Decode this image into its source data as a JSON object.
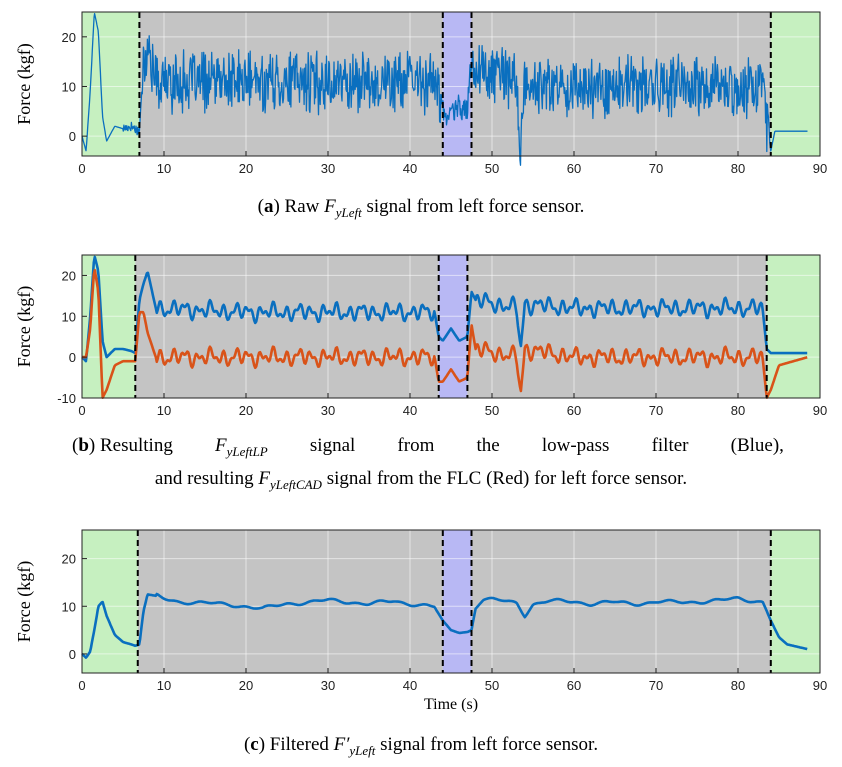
{
  "chart_data": [
    {
      "type": "line",
      "panel": "a",
      "caption": {
        "label": "a",
        "before": "Raw ",
        "sym": "F",
        "sub": "yLeft",
        "after": " signal from left force sensor."
      },
      "ylabel": "Force (kgf)",
      "xlabel": "",
      "xlim": [
        0,
        90
      ],
      "ylim": [
        -4,
        25
      ],
      "xticks": [
        0,
        10,
        20,
        30,
        40,
        50,
        60,
        70,
        80,
        90
      ],
      "yticks": [
        0,
        10,
        20
      ],
      "grid": true,
      "regions": [
        {
          "from": 0,
          "to": 7,
          "color": "#c6f0c0"
        },
        {
          "from": 7,
          "to": 44,
          "color": "#c4c4c4"
        },
        {
          "from": 44,
          "to": 47.5,
          "color": "#b8b8f4"
        },
        {
          "from": 47.5,
          "to": 84,
          "color": "#c4c4c4"
        },
        {
          "from": 84,
          "to": 90,
          "color": "#c6f0c0"
        }
      ],
      "boundaries": [
        7,
        44,
        47.5,
        84
      ],
      "series": [
        {
          "color": "#0a6fbf",
          "kind": "raw",
          "x": [
            0,
            0.5,
            1,
            1.5,
            2,
            2.5,
            3,
            4,
            5,
            6,
            7,
            7.5,
            8,
            9,
            43,
            44,
            45,
            46,
            47,
            47.5,
            48,
            53,
            53.5,
            54,
            83,
            84,
            84.5,
            85,
            88.5
          ],
          "y": [
            0,
            -3,
            9,
            25,
            21,
            4,
            -1,
            2,
            1.5,
            2,
            1,
            15,
            18,
            11,
            11,
            5,
            4,
            6,
            5,
            16,
            14,
            11,
            -3,
            10,
            10,
            -3,
            1,
            1,
            1
          ]
        }
      ]
    },
    {
      "type": "line",
      "panel": "b",
      "caption": {
        "label": "b",
        "line1": [
          "Resulting",
          "F|yLeftLP",
          "signal",
          "from",
          "the",
          "low-pass",
          "filter",
          "(Blue),"
        ],
        "line2_before": "and resulting ",
        "sym": "F",
        "sub": "yLeftCAD",
        "line2_after": " signal from the FLC (Red) for left force sensor."
      },
      "ylabel": "Force (kgf)",
      "xlabel": "",
      "xlim": [
        0,
        90
      ],
      "ylim": [
        -10,
        25
      ],
      "xticks": [
        0,
        10,
        20,
        30,
        40,
        50,
        60,
        70,
        80,
        90
      ],
      "yticks": [
        -10,
        0,
        10,
        20
      ],
      "grid": true,
      "regions": [
        {
          "from": 0,
          "to": 6.5,
          "color": "#c6f0c0"
        },
        {
          "from": 6.5,
          "to": 43.5,
          "color": "#c4c4c4"
        },
        {
          "from": 43.5,
          "to": 47,
          "color": "#b8b8f4"
        },
        {
          "from": 47,
          "to": 83.5,
          "color": "#c4c4c4"
        },
        {
          "from": 83.5,
          "to": 90,
          "color": "#c6f0c0"
        }
      ],
      "boundaries": [
        6.5,
        43.5,
        47,
        83.5
      ],
      "series": [
        {
          "name": "Blue",
          "color": "#0a6fbf",
          "kind": "smooth",
          "x": [
            0,
            0.5,
            1,
            1.5,
            2,
            2.5,
            3,
            4,
            5,
            6,
            6.5,
            7,
            7.5,
            8,
            9,
            20,
            30,
            40,
            43,
            43.5,
            44,
            45,
            46,
            47,
            47.5,
            48,
            53,
            53.5,
            54,
            60,
            70,
            80,
            83,
            83.5,
            84,
            85,
            88.5
          ],
          "y": [
            0,
            -1,
            10,
            25,
            21,
            4,
            0,
            2,
            2,
            1.5,
            1,
            14,
            18,
            21,
            12,
            11,
            11,
            11,
            11,
            5,
            4,
            7,
            4,
            5,
            16,
            14,
            12,
            2,
            13,
            12,
            12,
            12,
            12,
            2,
            1,
            1,
            1
          ]
        },
        {
          "name": "Red",
          "color": "#d95319",
          "kind": "smooth",
          "x": [
            0,
            0.5,
            1,
            1.5,
            2,
            2.5,
            3,
            4,
            5,
            6,
            6.5,
            7,
            7.5,
            8,
            9,
            20,
            30,
            40,
            43,
            43.5,
            44,
            45,
            46,
            47,
            47.5,
            48,
            53,
            53.5,
            54,
            60,
            70,
            80,
            83,
            83.5,
            84,
            85,
            88.5
          ],
          "y": [
            0,
            0,
            7,
            22,
            16,
            -10,
            -8,
            -2,
            -1,
            -1,
            -1,
            11,
            11,
            6,
            0,
            0,
            0,
            0,
            0,
            -6,
            -6,
            -3,
            -6,
            -5,
            8,
            2,
            0,
            -9,
            2,
            0,
            0,
            0,
            0,
            -10,
            -8,
            -2,
            0
          ]
        }
      ]
    },
    {
      "type": "line",
      "panel": "c",
      "caption": {
        "label": "c",
        "before": "Filtered ",
        "sym": "F′",
        "sub": "yLeft",
        "after": " signal from left force sensor."
      },
      "ylabel": "Force (kgf)",
      "xlabel": "Time (s)",
      "xlim": [
        0,
        90
      ],
      "ylim": [
        -4,
        26
      ],
      "xticks": [
        0,
        10,
        20,
        30,
        40,
        50,
        60,
        70,
        80,
        90
      ],
      "yticks": [
        0,
        10,
        20
      ],
      "grid": true,
      "regions": [
        {
          "from": 0,
          "to": 6.8,
          "color": "#c6f0c0"
        },
        {
          "from": 6.8,
          "to": 44,
          "color": "#c4c4c4"
        },
        {
          "from": 44,
          "to": 47.5,
          "color": "#b8b8f4"
        },
        {
          "from": 47.5,
          "to": 84,
          "color": "#c4c4c4"
        },
        {
          "from": 84,
          "to": 90,
          "color": "#c6f0c0"
        }
      ],
      "boundaries": [
        6.8,
        44,
        47.5,
        84
      ],
      "series": [
        {
          "color": "#0a6fbf",
          "kind": "smooth",
          "x": [
            0,
            0.5,
            1,
            1.5,
            2,
            2.5,
            3,
            4,
            5,
            6,
            6.5,
            7,
            7.5,
            8,
            9,
            10,
            12,
            15,
            18,
            20,
            22,
            25,
            28,
            30,
            33,
            35,
            38,
            40,
            42,
            43,
            44,
            45,
            46,
            47,
            47.5,
            48,
            49,
            50,
            52,
            53,
            54,
            55,
            57,
            60,
            62,
            65,
            68,
            70,
            72,
            75,
            78,
            80,
            82,
            83,
            84,
            85,
            86,
            88.5
          ],
          "y": [
            0,
            -0.8,
            0.5,
            5,
            10,
            11,
            8,
            4,
            2.5,
            2,
            1.7,
            2,
            9,
            12.5,
            12.2,
            11.6,
            11,
            10.6,
            10.4,
            10,
            9.4,
            10.6,
            10.9,
            11.2,
            10.9,
            10.5,
            11,
            10.6,
            10.2,
            9.8,
            7,
            5,
            4.4,
            4.6,
            5,
            9.5,
            11.4,
            11.3,
            11,
            10.8,
            8.2,
            10.4,
            11,
            11.1,
            10.5,
            10.8,
            10.6,
            10.9,
            10.8,
            11,
            11.2,
            11.6,
            11.2,
            11,
            7,
            3.5,
            2,
            1
          ]
        }
      ]
    }
  ]
}
